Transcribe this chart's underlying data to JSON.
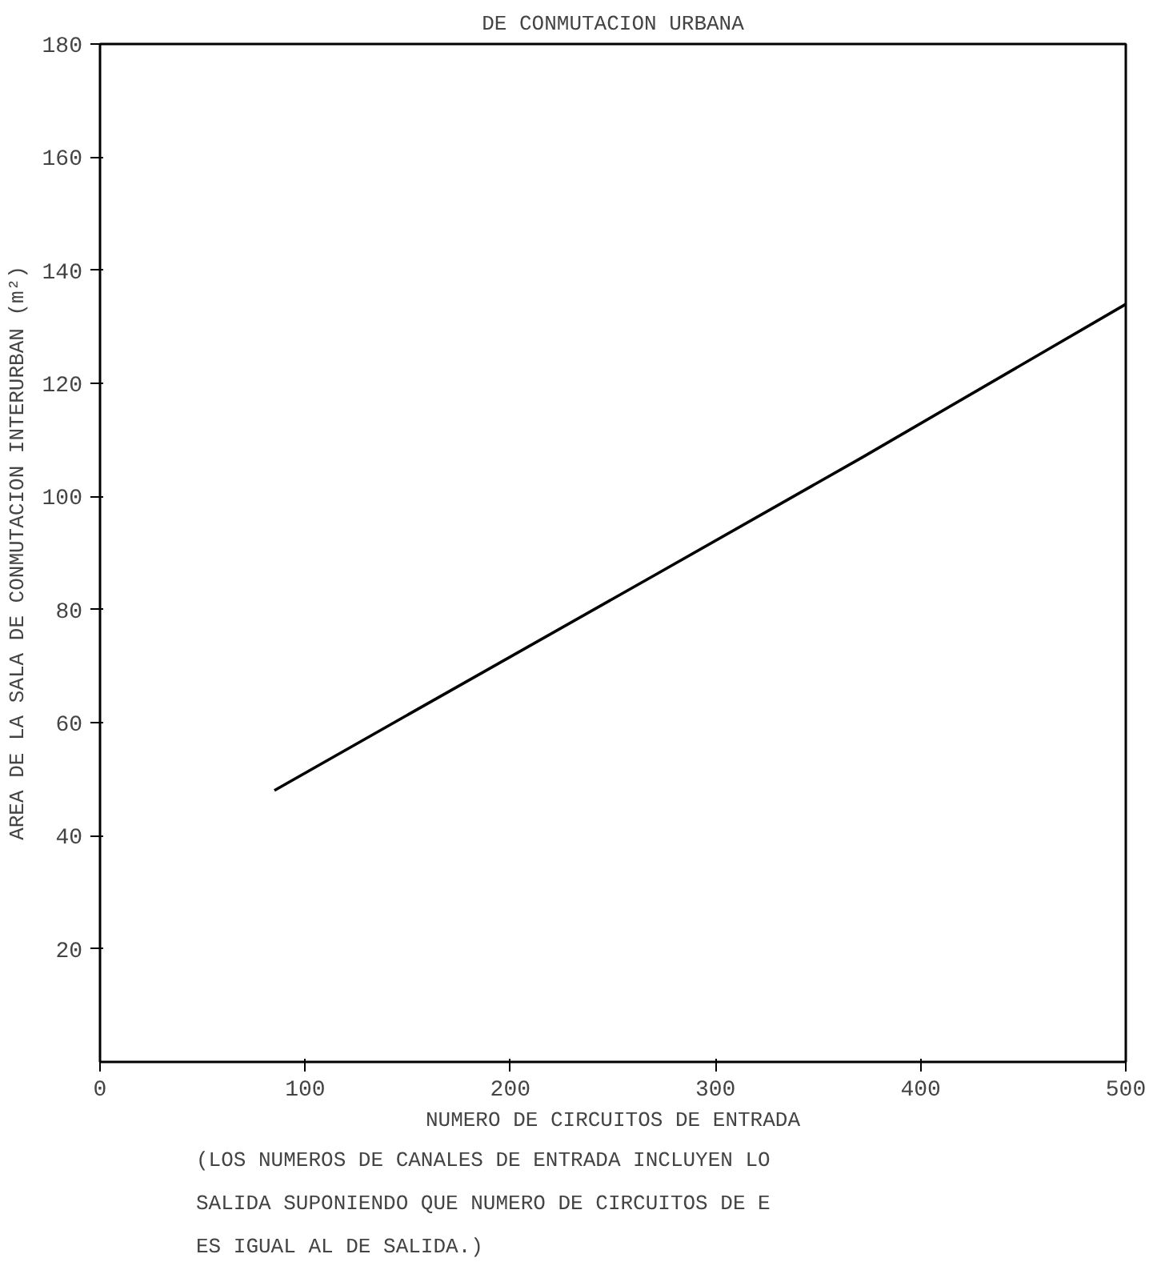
{
  "chart_data": {
    "type": "line",
    "title": "DE CONMUTACION URBANA",
    "xlabel": "NUMERO DE CIRCUITOS DE ENTRADA",
    "ylabel": "AREA DE LA SALA DE CONMUTACION INTERURBAN (m²)",
    "x": [
      85,
      153,
      270,
      372,
      500
    ],
    "series": [
      {
        "color": "#000000",
        "values": [
          48,
          62,
          86,
          107,
          134
        ]
      }
    ],
    "xlim": [
      0,
      500
    ],
    "ylim": [
      0,
      180
    ],
    "xticks": [
      0,
      100,
      200,
      300,
      400,
      500
    ],
    "yticks": [
      20,
      40,
      60,
      80,
      100,
      120,
      140,
      160,
      180
    ],
    "grid": false,
    "marker": "none",
    "line_style": "solid",
    "annotations": [
      "(LOS NUMEROS DE CANALES DE ENTRADA INCLUYEN LO",
      "SALIDA SUPONIENDO QUE NUMERO DE CIRCUITOS DE E",
      "ES IGUAL AL DE SALIDA.)"
    ]
  }
}
